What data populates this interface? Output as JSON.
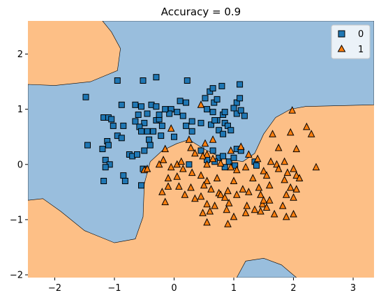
{
  "chart_data": {
    "type": "scatter",
    "title": "Accuracy = 0.9",
    "xlabel": "",
    "ylabel": "",
    "xlim": [
      -2.45,
      3.35
    ],
    "ylim": [
      -2.05,
      2.6
    ],
    "xticks": [
      -2,
      -1,
      0,
      1,
      2,
      3
    ],
    "yticks": [
      -2,
      -1,
      0,
      1,
      2
    ],
    "xtick_labels": [
      "−2",
      "−1",
      "0",
      "1",
      "2",
      "3"
    ],
    "ytick_labels": [
      "−2",
      "−1",
      "0",
      "1",
      "2"
    ],
    "legend_position": "top-right",
    "region_colors": {
      "class_0": "#99bedd",
      "class_1": "#fdbf86"
    },
    "series": [
      {
        "name": "0",
        "marker": "square",
        "color": "#1f77b4",
        "points": [
          [
            -1.48,
            1.22
          ],
          [
            -0.95,
            1.52
          ],
          [
            -0.52,
            1.52
          ],
          [
            -0.3,
            1.58
          ],
          [
            0.22,
            1.52
          ],
          [
            0.6,
            1.32
          ],
          [
            0.65,
            1.38
          ],
          [
            0.8,
            1.42
          ],
          [
            1.1,
            1.45
          ],
          [
            -0.65,
            1.08
          ],
          [
            -0.55,
            1.05
          ],
          [
            -0.38,
            1.08
          ],
          [
            -0.3,
            1.05
          ],
          [
            -0.05,
            1.0
          ],
          [
            0.2,
            1.12
          ],
          [
            0.52,
            1.2
          ],
          [
            0.67,
            1.12
          ],
          [
            0.72,
            1.18
          ],
          [
            1.05,
            1.12
          ],
          [
            1.1,
            1.2
          ],
          [
            1.0,
            1.02
          ],
          [
            1.05,
            0.92
          ],
          [
            1.12,
            0.98
          ],
          [
            0.82,
            0.9
          ],
          [
            0.85,
            0.95
          ],
          [
            0.65,
            0.95
          ],
          [
            -1.18,
            0.85
          ],
          [
            -1.1,
            0.85
          ],
          [
            -1.05,
            0.82
          ],
          [
            -0.88,
            1.08
          ],
          [
            -0.6,
            0.9
          ],
          [
            -0.45,
            0.92
          ],
          [
            -0.3,
            0.8
          ],
          [
            -0.25,
            0.82
          ],
          [
            -0.25,
            0.9
          ],
          [
            0.05,
            0.95
          ],
          [
            0.15,
            0.88
          ],
          [
            0.3,
            0.78
          ],
          [
            0.45,
            0.75
          ],
          [
            0.62,
            0.72
          ],
          [
            0.72,
            0.8
          ],
          [
            0.68,
            0.8
          ],
          [
            0.85,
            0.75
          ],
          [
            0.9,
            0.7
          ],
          [
            1.18,
            0.88
          ],
          [
            -1.02,
            0.7
          ],
          [
            -0.85,
            0.7
          ],
          [
            -0.65,
            0.78
          ],
          [
            -0.5,
            0.75
          ],
          [
            -0.45,
            0.6
          ],
          [
            -0.35,
            0.6
          ],
          [
            -0.42,
            0.45
          ],
          [
            -0.2,
            0.7
          ],
          [
            0.2,
            0.7
          ],
          [
            0.3,
            0.6
          ],
          [
            0.75,
            0.62
          ],
          [
            0.95,
            0.62
          ],
          [
            0.82,
            0.55
          ],
          [
            -0.95,
            0.52
          ],
          [
            -0.88,
            0.48
          ],
          [
            -0.58,
            0.68
          ],
          [
            -0.4,
            0.35
          ],
          [
            -0.22,
            0.52
          ],
          [
            -0.55,
            0.6
          ],
          [
            -1.45,
            0.35
          ],
          [
            -1.12,
            0.42
          ],
          [
            -1.1,
            0.35
          ],
          [
            -1.2,
            0.28
          ],
          [
            -1.15,
            0.08
          ],
          [
            -1.08,
            -0.0
          ],
          [
            -1.15,
            -0.05
          ],
          [
            -0.75,
            0.18
          ],
          [
            -0.7,
            0.15
          ],
          [
            -0.62,
            0.18
          ],
          [
            -0.5,
            0.25
          ],
          [
            -0.52,
            -0.08
          ],
          [
            -0.85,
            -0.2
          ],
          [
            -0.82,
            -0.3
          ],
          [
            -0.55,
            -0.38
          ],
          [
            -1.18,
            -0.3
          ],
          [
            0.45,
            0.25
          ],
          [
            0.65,
            0.25
          ],
          [
            1.05,
            0.28
          ],
          [
            1.12,
            0.25
          ],
          [
            0.75,
            0.12
          ],
          [
            0.82,
            0.15
          ],
          [
            0.55,
            0.08
          ],
          [
            0.68,
            0.05
          ],
          [
            0.25,
            0.0
          ],
          [
            0.92,
            0.05
          ],
          [
            1.0,
            0.12
          ],
          [
            1.02,
            -0.02
          ],
          [
            0.85,
            -0.05
          ],
          [
            1.35,
            0.05
          ],
          [
            1.38,
            -0.02
          ],
          [
            -0.08,
            0.92
          ],
          [
            -0.15,
            1.0
          ],
          [
            0.1,
            1.15
          ],
          [
            0.55,
            1.0
          ],
          [
            0.0,
            0.5
          ]
        ]
      },
      {
        "name": "1",
        "marker": "triangle",
        "color": "#ff7f0e",
        "points": [
          [
            0.45,
            1.08
          ],
          [
            1.98,
            0.98
          ],
          [
            1.65,
            0.55
          ],
          [
            2.22,
            0.68
          ],
          [
            2.3,
            0.55
          ],
          [
            1.95,
            0.58
          ],
          [
            -0.05,
            0.65
          ],
          [
            0.25,
            0.45
          ],
          [
            0.65,
            0.45
          ],
          [
            0.52,
            0.38
          ],
          [
            1.12,
            0.32
          ],
          [
            0.95,
            0.25
          ],
          [
            0.28,
            0.3
          ],
          [
            -0.15,
            0.28
          ],
          [
            0.35,
            0.2
          ],
          [
            0.55,
            0.18
          ],
          [
            0.48,
            0.15
          ],
          [
            1.25,
            0.18
          ],
          [
            1.75,
            0.3
          ],
          [
            2.05,
            0.28
          ],
          [
            1.4,
            0.1
          ],
          [
            1.62,
            0.05
          ],
          [
            1.72,
            0.0
          ],
          [
            1.85,
            0.05
          ],
          [
            2.38,
            -0.05
          ],
          [
            -0.18,
            0.08
          ],
          [
            0.05,
            0.0
          ],
          [
            0.12,
            0.05
          ],
          [
            -0.25,
            0.0
          ],
          [
            -0.05,
            -0.05
          ],
          [
            0.15,
            -0.08
          ],
          [
            0.55,
            0.0
          ],
          [
            0.65,
            0.1
          ],
          [
            0.78,
            0.02
          ],
          [
            0.95,
            -0.05
          ],
          [
            1.05,
            -0.1
          ],
          [
            1.2,
            -0.05
          ],
          [
            1.5,
            -0.12
          ],
          [
            1.75,
            -0.08
          ],
          [
            1.9,
            -0.15
          ],
          [
            2.0,
            -0.08
          ],
          [
            2.05,
            -0.2
          ],
          [
            -0.5,
            -0.1
          ],
          [
            -0.45,
            -0.08
          ],
          [
            -0.1,
            -0.25
          ],
          [
            0.05,
            -0.22
          ],
          [
            0.3,
            -0.15
          ],
          [
            0.45,
            -0.2
          ],
          [
            0.55,
            -0.3
          ],
          [
            0.72,
            -0.25
          ],
          [
            1.0,
            -0.3
          ],
          [
            1.32,
            -0.25
          ],
          [
            1.55,
            -0.2
          ],
          [
            1.85,
            -0.28
          ],
          [
            2.1,
            -0.25
          ],
          [
            -0.1,
            -0.4
          ],
          [
            0.08,
            -0.4
          ],
          [
            0.28,
            -0.42
          ],
          [
            0.5,
            -0.38
          ],
          [
            0.62,
            -0.45
          ],
          [
            0.75,
            -0.52
          ],
          [
            0.9,
            -0.48
          ],
          [
            1.15,
            -0.45
          ],
          [
            1.42,
            -0.42
          ],
          [
            1.6,
            -0.38
          ],
          [
            1.95,
            -0.42
          ],
          [
            2.05,
            -0.45
          ],
          [
            -0.2,
            -0.5
          ],
          [
            0.18,
            -0.55
          ],
          [
            0.45,
            -0.58
          ],
          [
            0.78,
            -0.55
          ],
          [
            0.85,
            -0.6
          ],
          [
            1.05,
            -0.55
          ],
          [
            1.25,
            -0.5
          ],
          [
            1.45,
            -0.55
          ],
          [
            1.6,
            -0.65
          ],
          [
            1.88,
            -0.55
          ],
          [
            2.0,
            -0.6
          ],
          [
            0.55,
            -0.72
          ],
          [
            0.68,
            -0.75
          ],
          [
            0.92,
            -0.7
          ],
          [
            1.22,
            -0.75
          ],
          [
            1.48,
            -0.72
          ],
          [
            1.55,
            -0.78
          ],
          [
            1.68,
            -0.9
          ],
          [
            1.82,
            -0.75
          ],
          [
            1.35,
            -0.82
          ],
          [
            1.2,
            -0.88
          ],
          [
            1.45,
            -0.85
          ],
          [
            -0.15,
            -0.68
          ],
          [
            0.48,
            -0.88
          ],
          [
            0.6,
            -0.85
          ],
          [
            0.88,
            -0.82
          ],
          [
            1.0,
            -0.95
          ],
          [
            1.88,
            -0.95
          ],
          [
            0.55,
            -1.05
          ],
          [
            0.9,
            -1.08
          ],
          [
            2.0,
            -0.9
          ],
          [
            1.5,
            -0.65
          ],
          [
            0.35,
            -0.62
          ]
        ]
      }
    ]
  }
}
